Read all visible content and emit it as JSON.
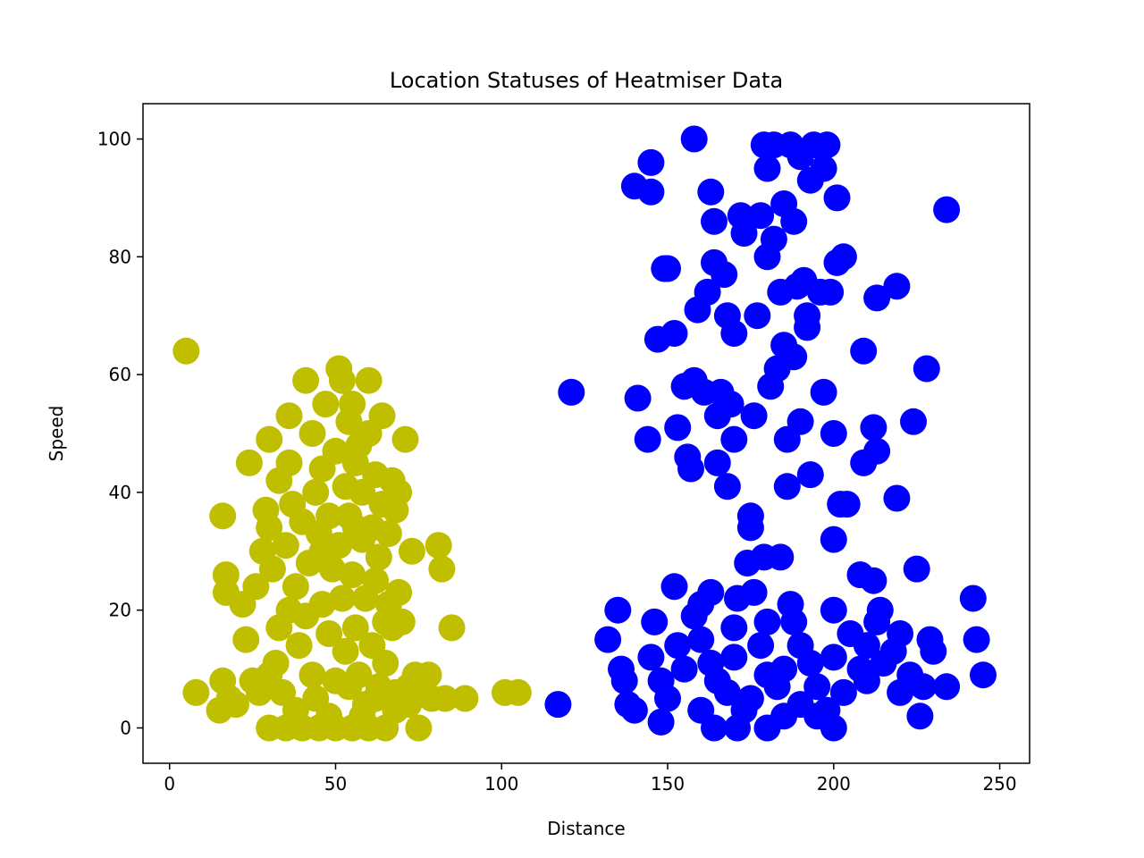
{
  "chart_data": {
    "type": "scatter",
    "title": "Location Statuses of Heatmiser Data",
    "xlabel": "Distance",
    "ylabel": "Speed",
    "xlim": [
      -8,
      259
    ],
    "ylim": [
      -6,
      106
    ],
    "xticks": [
      0,
      50,
      100,
      150,
      200,
      250
    ],
    "yticks": [
      0,
      20,
      40,
      60,
      80,
      100
    ],
    "grid": false,
    "series": [
      {
        "color": "#bfbf00",
        "points": [
          [
            5,
            64
          ],
          [
            8,
            6
          ],
          [
            16,
            36
          ],
          [
            17,
            26
          ],
          [
            17,
            23
          ],
          [
            16,
            8
          ],
          [
            15,
            3
          ],
          [
            18,
            5
          ],
          [
            20,
            4
          ],
          [
            22,
            21
          ],
          [
            23,
            15
          ],
          [
            24,
            45
          ],
          [
            25,
            8
          ],
          [
            26,
            24
          ],
          [
            27,
            6
          ],
          [
            28,
            30
          ],
          [
            29,
            37
          ],
          [
            30,
            49
          ],
          [
            30,
            34
          ],
          [
            31,
            27
          ],
          [
            32,
            11
          ],
          [
            33,
            17
          ],
          [
            33,
            42
          ],
          [
            34,
            6
          ],
          [
            35,
            31
          ],
          [
            36,
            53
          ],
          [
            36,
            45
          ],
          [
            37,
            38
          ],
          [
            38,
            24
          ],
          [
            39,
            14
          ],
          [
            40,
            35
          ],
          [
            41,
            59
          ],
          [
            41,
            19
          ],
          [
            42,
            28
          ],
          [
            43,
            50
          ],
          [
            43,
            9
          ],
          [
            44,
            40
          ],
          [
            45,
            33
          ],
          [
            46,
            44
          ],
          [
            46,
            21
          ],
          [
            47,
            55
          ],
          [
            48,
            16
          ],
          [
            48,
            36
          ],
          [
            49,
            27
          ],
          [
            50,
            47
          ],
          [
            50,
            8
          ],
          [
            51,
            61
          ],
          [
            51,
            31
          ],
          [
            52,
            59
          ],
          [
            52,
            22
          ],
          [
            53,
            41
          ],
          [
            53,
            13
          ],
          [
            54,
            52
          ],
          [
            54,
            36
          ],
          [
            55,
            55
          ],
          [
            55,
            26
          ],
          [
            56,
            45
          ],
          [
            56,
            17
          ],
          [
            57,
            9
          ],
          [
            57,
            48
          ],
          [
            58,
            32
          ],
          [
            58,
            40
          ],
          [
            59,
            22
          ],
          [
            59,
            4
          ],
          [
            60,
            50
          ],
          [
            60,
            59
          ],
          [
            61,
            34
          ],
          [
            61,
            14
          ],
          [
            62,
            25
          ],
          [
            62,
            43
          ],
          [
            63,
            7
          ],
          [
            63,
            29
          ],
          [
            64,
            53
          ],
          [
            64,
            38
          ],
          [
            65,
            18
          ],
          [
            65,
            11
          ],
          [
            66,
            33
          ],
          [
            66,
            21
          ],
          [
            67,
            17
          ],
          [
            67,
            42
          ],
          [
            68,
            37
          ],
          [
            68,
            6
          ],
          [
            69,
            23
          ],
          [
            69,
            40
          ],
          [
            70,
            18
          ],
          [
            71,
            49
          ],
          [
            72,
            4
          ],
          [
            73,
            30
          ],
          [
            74,
            9
          ],
          [
            75,
            0
          ],
          [
            76,
            7
          ],
          [
            78,
            9
          ],
          [
            79,
            5
          ],
          [
            81,
            31
          ],
          [
            82,
            27
          ],
          [
            83,
            5
          ],
          [
            85,
            17
          ],
          [
            89,
            5
          ],
          [
            101,
            6
          ],
          [
            105,
            6
          ],
          [
            30,
            0
          ],
          [
            35,
            0
          ],
          [
            40,
            0
          ],
          [
            45,
            0
          ],
          [
            50,
            0
          ],
          [
            55,
            0
          ],
          [
            60,
            0
          ],
          [
            65,
            0
          ],
          [
            38,
            3
          ],
          [
            48,
            2
          ],
          [
            58,
            2
          ],
          [
            68,
            3
          ],
          [
            30,
            9
          ],
          [
            44,
            5
          ],
          [
            54,
            7
          ],
          [
            62,
            5
          ],
          [
            72,
            7
          ],
          [
            36,
            20
          ],
          [
            46,
            30
          ],
          [
            56,
            34
          ]
        ]
      },
      {
        "color": "#0000ff",
        "points": [
          [
            117,
            4
          ],
          [
            121,
            57
          ],
          [
            132,
            15
          ],
          [
            135,
            20
          ],
          [
            136,
            10
          ],
          [
            137,
            8
          ],
          [
            138,
            4
          ],
          [
            140,
            3
          ],
          [
            140,
            92
          ],
          [
            141,
            56
          ],
          [
            144,
            49
          ],
          [
            145,
            96
          ],
          [
            145,
            91
          ],
          [
            146,
            18
          ],
          [
            147,
            66
          ],
          [
            148,
            1
          ],
          [
            149,
            78
          ],
          [
            150,
            78
          ],
          [
            152,
            24
          ],
          [
            152,
            67
          ],
          [
            153,
            51
          ],
          [
            155,
            58
          ],
          [
            156,
            46
          ],
          [
            157,
            44
          ],
          [
            158,
            59
          ],
          [
            158,
            100
          ],
          [
            159,
            71
          ],
          [
            160,
            21
          ],
          [
            161,
            57
          ],
          [
            162,
            74
          ],
          [
            163,
            91
          ],
          [
            163,
            23
          ],
          [
            164,
            86
          ],
          [
            164,
            79
          ],
          [
            165,
            53
          ],
          [
            165,
            45
          ],
          [
            166,
            57
          ],
          [
            167,
            77
          ],
          [
            168,
            70
          ],
          [
            168,
            41
          ],
          [
            169,
            55
          ],
          [
            170,
            67
          ],
          [
            170,
            49
          ],
          [
            171,
            22
          ],
          [
            172,
            87
          ],
          [
            173,
            84
          ],
          [
            174,
            28
          ],
          [
            175,
            36
          ],
          [
            175,
            34
          ],
          [
            176,
            53
          ],
          [
            177,
            70
          ],
          [
            178,
            87
          ],
          [
            179,
            29
          ],
          [
            179,
            99
          ],
          [
            180,
            95
          ],
          [
            180,
            80
          ],
          [
            181,
            58
          ],
          [
            182,
            99
          ],
          [
            182,
            83
          ],
          [
            183,
            61
          ],
          [
            184,
            74
          ],
          [
            184,
            29
          ],
          [
            185,
            89
          ],
          [
            185,
            65
          ],
          [
            186,
            41
          ],
          [
            186,
            49
          ],
          [
            187,
            99
          ],
          [
            188,
            86
          ],
          [
            188,
            63
          ],
          [
            189,
            75
          ],
          [
            190,
            52
          ],
          [
            190,
            97
          ],
          [
            191,
            76
          ],
          [
            192,
            70
          ],
          [
            192,
            68
          ],
          [
            193,
            93
          ],
          [
            193,
            43
          ],
          [
            194,
            99
          ],
          [
            196,
            74
          ],
          [
            197,
            57
          ],
          [
            197,
            95
          ],
          [
            198,
            99
          ],
          [
            199,
            74
          ],
          [
            200,
            32
          ],
          [
            200,
            50
          ],
          [
            201,
            79
          ],
          [
            201,
            90
          ],
          [
            202,
            38
          ],
          [
            203,
            80
          ],
          [
            204,
            38
          ],
          [
            208,
            26
          ],
          [
            209,
            45
          ],
          [
            209,
            64
          ],
          [
            212,
            51
          ],
          [
            212,
            25
          ],
          [
            213,
            73
          ],
          [
            213,
            47
          ],
          [
            214,
            20
          ],
          [
            219,
            39
          ],
          [
            219,
            75
          ],
          [
            220,
            16
          ],
          [
            224,
            52
          ],
          [
            225,
            27
          ],
          [
            226,
            2
          ],
          [
            227,
            7
          ],
          [
            228,
            61
          ],
          [
            229,
            15
          ],
          [
            230,
            13
          ],
          [
            234,
            88
          ],
          [
            234,
            7
          ],
          [
            242,
            22
          ],
          [
            243,
            15
          ],
          [
            245,
            9
          ],
          [
            164,
            0
          ],
          [
            171,
            0
          ],
          [
            180,
            0
          ],
          [
            200,
            0
          ],
          [
            185,
            2
          ],
          [
            195,
            2
          ],
          [
            150,
            5
          ],
          [
            155,
            10
          ],
          [
            160,
            15
          ],
          [
            165,
            8
          ],
          [
            170,
            12
          ],
          [
            175,
            5
          ],
          [
            180,
            18
          ],
          [
            185,
            10
          ],
          [
            190,
            14
          ],
          [
            195,
            7
          ],
          [
            200,
            12
          ],
          [
            205,
            16
          ],
          [
            210,
            8
          ],
          [
            215,
            11
          ],
          [
            220,
            6
          ],
          [
            160,
            3
          ],
          [
            170,
            17
          ],
          [
            180,
            9
          ],
          [
            190,
            4
          ],
          [
            200,
            20
          ],
          [
            210,
            14
          ],
          [
            158,
            19
          ],
          [
            168,
            6
          ],
          [
            178,
            14
          ],
          [
            188,
            18
          ],
          [
            198,
            3
          ],
          [
            208,
            10
          ],
          [
            218,
            13
          ],
          [
            153,
            14
          ],
          [
            163,
            11
          ],
          [
            173,
            3
          ],
          [
            183,
            7
          ],
          [
            193,
            11
          ],
          [
            203,
            6
          ],
          [
            213,
            18
          ],
          [
            223,
            9
          ],
          [
            145,
            12
          ],
          [
            148,
            8
          ],
          [
            176,
            23
          ],
          [
            187,
            21
          ]
        ]
      }
    ]
  }
}
